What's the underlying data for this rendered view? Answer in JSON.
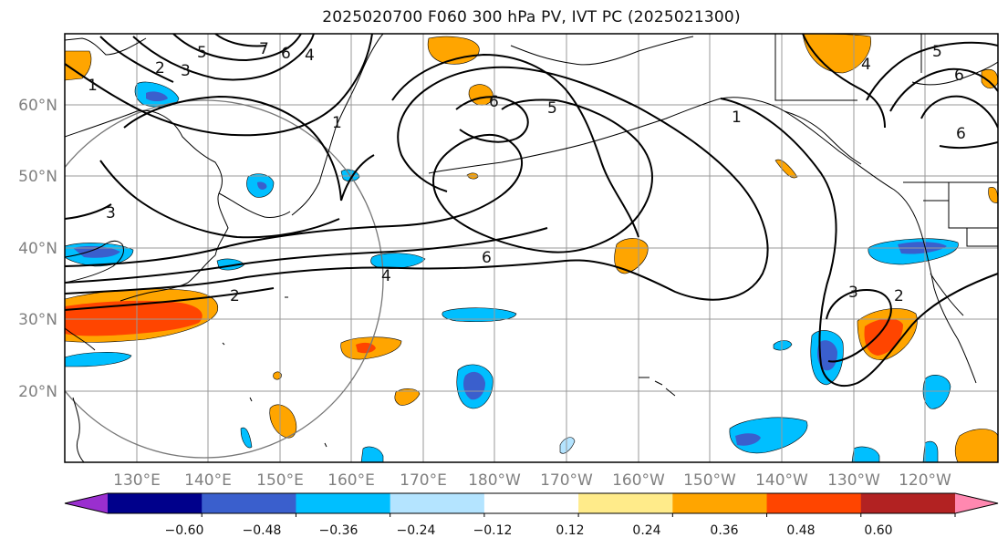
{
  "title": "2025020700 F060 300 hPa PV, IVT PC (2025021300)",
  "map": {
    "lat_labels": [
      "60°N",
      "50°N",
      "40°N",
      "30°N",
      "20°N"
    ],
    "lat_values": [
      60,
      50,
      40,
      30,
      20
    ],
    "lon_labels": [
      "130°E",
      "140°E",
      "150°E",
      "160°E",
      "170°E",
      "180°W",
      "170°W",
      "160°W",
      "150°W",
      "140°W",
      "130°W",
      "120°W"
    ],
    "lon_values": [
      130,
      140,
      150,
      160,
      170,
      180,
      190,
      200,
      210,
      220,
      230,
      240
    ],
    "extent": {
      "lon_min": 120,
      "lon_max": 250,
      "lat_min": 10,
      "lat_max": 70
    },
    "pv_contour_labels": [
      "1",
      "2",
      "3",
      "5",
      "7",
      "6",
      "4",
      "1",
      "6",
      "5",
      "1",
      "3",
      "6",
      "4",
      "6",
      "2",
      "3",
      "2",
      "6",
      "5",
      "4"
    ]
  },
  "colorbar": {
    "ticks": [
      "−0.60",
      "−0.48",
      "−0.36",
      "−0.24",
      "−0.12",
      "0.12",
      "0.24",
      "0.36",
      "0.48",
      "0.60"
    ],
    "colors": [
      "#9a2fcf",
      "#00008b",
      "#3a5fcd",
      "#00bfff",
      "#b4e4ff",
      "#ffffff",
      "#ffeb8a",
      "#ffa500",
      "#ff4500",
      "#b22222",
      "#ff88b0"
    ]
  },
  "colors": {
    "strong_neg": "#3a5fcd",
    "neg": "#00bfff",
    "weak_pos": "#ffeb8a",
    "pos": "#ffa500",
    "strong_pos": "#ff4500",
    "contour": "#000000",
    "grid": "#999999",
    "coast": "#000000"
  }
}
